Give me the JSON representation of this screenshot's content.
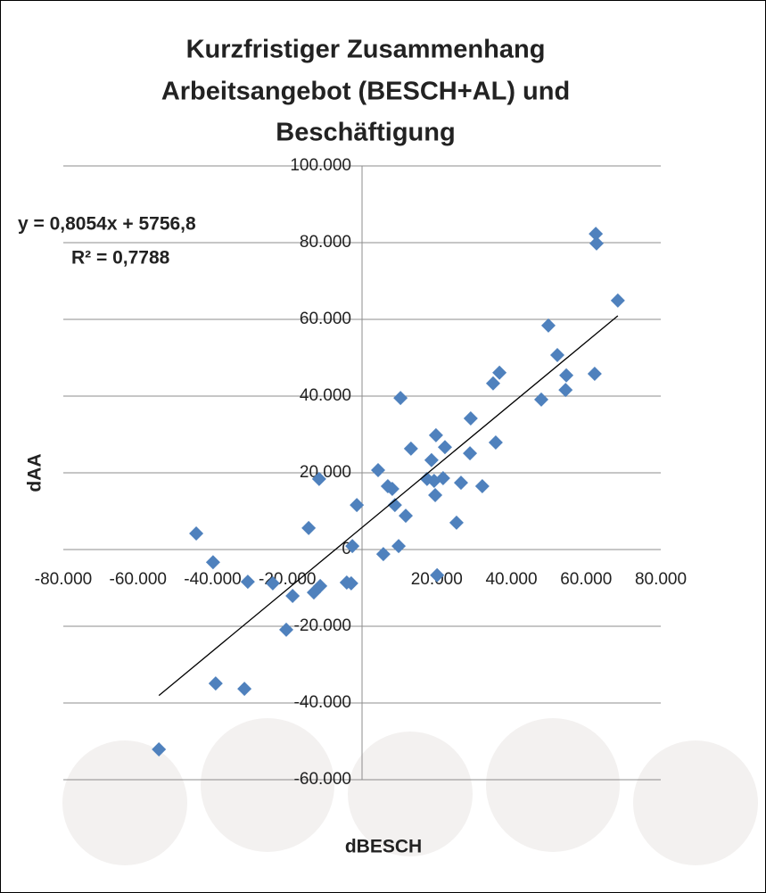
{
  "chart_data": {
    "type": "scatter",
    "title": [
      "Kurzfristiger Zusammenhang",
      "Arbeitsangebot (BESCH+AL) und",
      "Beschäftigung"
    ],
    "x_label": "dBESCH",
    "y_label": "dAA",
    "color": "#4f81bd",
    "grid": true,
    "xlim": [
      -80000,
      80000
    ],
    "ylim": [
      -60000,
      100000
    ],
    "xticks": [
      {
        "value": -80000,
        "label": "-80.000"
      },
      {
        "value": -60000,
        "label": "-60.000"
      },
      {
        "value": -40000,
        "label": "-40.000"
      },
      {
        "value": -20000,
        "label": "-20.000"
      },
      {
        "value": 20000,
        "label": "20.000"
      },
      {
        "value": 40000,
        "label": "40.000"
      },
      {
        "value": 60000,
        "label": "60.000"
      },
      {
        "value": 80000,
        "label": "80.000"
      }
    ],
    "yticks": [
      {
        "value": -60000,
        "label": "-60.000"
      },
      {
        "value": -40000,
        "label": "-40.000"
      },
      {
        "value": -20000,
        "label": "-20.000"
      },
      0,
      {
        "value": 20000,
        "label": "20.000"
      },
      {
        "value": 40000,
        "label": "40.000"
      },
      {
        "value": 60000,
        "label": "60.000"
      },
      {
        "value": 80000,
        "label": "80.000"
      },
      {
        "value": 100000,
        "label": "100.000"
      }
    ],
    "x": [
      -54400,
      -44400,
      -39900,
      -39200,
      -31500,
      -30600,
      -23900,
      -20300,
      -18600,
      -14300,
      -12900,
      -11500,
      -11200,
      -4100,
      -2900,
      -2600,
      -1400,
      4300,
      5700,
      6900,
      8100,
      8800,
      9800,
      10300,
      11700,
      13100,
      17400,
      18600,
      19300,
      19800,
      19600,
      20100,
      21700,
      22200,
      25300,
      26500,
      28900,
      29100,
      32200,
      35100,
      35800,
      36800,
      48000,
      49900,
      52300,
      54500,
      54700,
      62300,
      62600,
      62800,
      68500
    ],
    "values": [
      -52100,
      4200,
      -3300,
      -34900,
      -36300,
      -8400,
      -8800,
      -20900,
      -12100,
      5600,
      -11200,
      18400,
      -9500,
      -8600,
      -8800,
      900,
      11600,
      20700,
      -1200,
      16500,
      15800,
      11600,
      900,
      39500,
      8800,
      26300,
      18400,
      23300,
      17900,
      29800,
      14200,
      -6700,
      18600,
      26700,
      7000,
      17400,
      25100,
      34200,
      16500,
      43300,
      27900,
      46100,
      39100,
      58400,
      50700,
      41600,
      45400,
      45800,
      82300,
      79800,
      64900
    ],
    "trendline": {
      "slope": 0.8054,
      "intercept": 5756.8,
      "equation": "y = 0,8054x + 5756,8",
      "r2": "R² = 0,7788"
    }
  }
}
